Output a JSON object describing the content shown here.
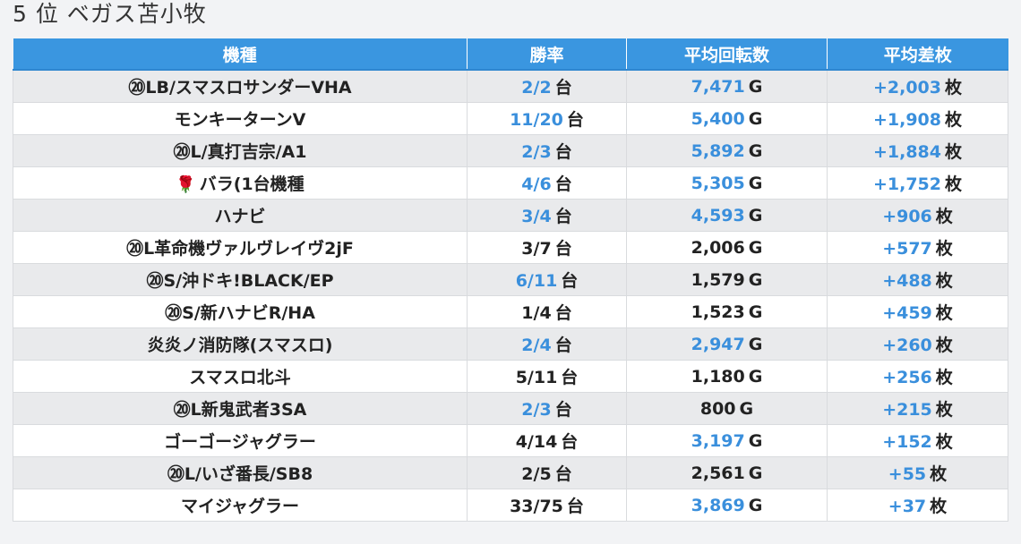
{
  "page": {
    "title": "5 位 ベガス苫小牧"
  },
  "table": {
    "headers": [
      "機種",
      "勝率",
      "平均回転数",
      "平均差枚"
    ],
    "rows": [
      {
        "machine": "⑳LB/スマスロサンダーVHA",
        "rate": "2/2",
        "rate_hl": true,
        "spins": "7,471",
        "spins_hl": true,
        "diff": "+2,003",
        "diff_hl": true
      },
      {
        "machine": "モンキーターンV",
        "rate": "11/20",
        "rate_hl": true,
        "spins": "5,400",
        "spins_hl": true,
        "diff": "+1,908",
        "diff_hl": true
      },
      {
        "machine": "⑳L/真打吉宗/A1",
        "rate": "2/3",
        "rate_hl": true,
        "spins": "5,892",
        "spins_hl": true,
        "diff": "+1,884",
        "diff_hl": true
      },
      {
        "machine": "バラ(1台機種",
        "icon": "rose-icon",
        "rate": "4/6",
        "rate_hl": true,
        "spins": "5,305",
        "spins_hl": true,
        "diff": "+1,752",
        "diff_hl": true
      },
      {
        "machine": "ハナビ",
        "rate": "3/4",
        "rate_hl": true,
        "spins": "4,593",
        "spins_hl": true,
        "diff": "+906",
        "diff_hl": true
      },
      {
        "machine": "⑳L革命機ヴァルヴレイヴ2jF",
        "rate": "3/7",
        "rate_hl": false,
        "spins": "2,006",
        "spins_hl": false,
        "diff": "+577",
        "diff_hl": true
      },
      {
        "machine": "⑳S/沖ドキ!BLACK/EP",
        "rate": "6/11",
        "rate_hl": true,
        "spins": "1,579",
        "spins_hl": false,
        "diff": "+488",
        "diff_hl": true
      },
      {
        "machine": "⑳S/新ハナビR/HA",
        "rate": "1/4",
        "rate_hl": false,
        "spins": "1,523",
        "spins_hl": false,
        "diff": "+459",
        "diff_hl": true
      },
      {
        "machine": "炎炎ノ消防隊(スマスロ)",
        "rate": "2/4",
        "rate_hl": true,
        "spins": "2,947",
        "spins_hl": true,
        "diff": "+260",
        "diff_hl": true
      },
      {
        "machine": "スマスロ北斗",
        "rate": "5/11",
        "rate_hl": false,
        "spins": "1,180",
        "spins_hl": false,
        "diff": "+256",
        "diff_hl": true
      },
      {
        "machine": "⑳L新鬼武者3SA",
        "rate": "2/3",
        "rate_hl": true,
        "spins": "800",
        "spins_hl": false,
        "diff": "+215",
        "diff_hl": true
      },
      {
        "machine": "ゴーゴージャグラー",
        "rate": "4/14",
        "rate_hl": false,
        "spins": "3,197",
        "spins_hl": true,
        "diff": "+152",
        "diff_hl": true
      },
      {
        "machine": "⑳L/いざ番長/SB8",
        "rate": "2/5",
        "rate_hl": false,
        "spins": "2,561",
        "spins_hl": false,
        "diff": "+55",
        "diff_hl": true
      },
      {
        "machine": "マイジャグラー",
        "rate": "33/75",
        "rate_hl": false,
        "spins": "3,869",
        "spins_hl": true,
        "diff": "+37",
        "diff_hl": true
      }
    ]
  },
  "units": {
    "rate": "台",
    "spins": "G",
    "diff": "枚"
  },
  "colors": {
    "header_bg": "#3a96e0",
    "highlight": "#3a8fdc",
    "row_alt": "#e9eaec",
    "rose": "#d0021b"
  }
}
